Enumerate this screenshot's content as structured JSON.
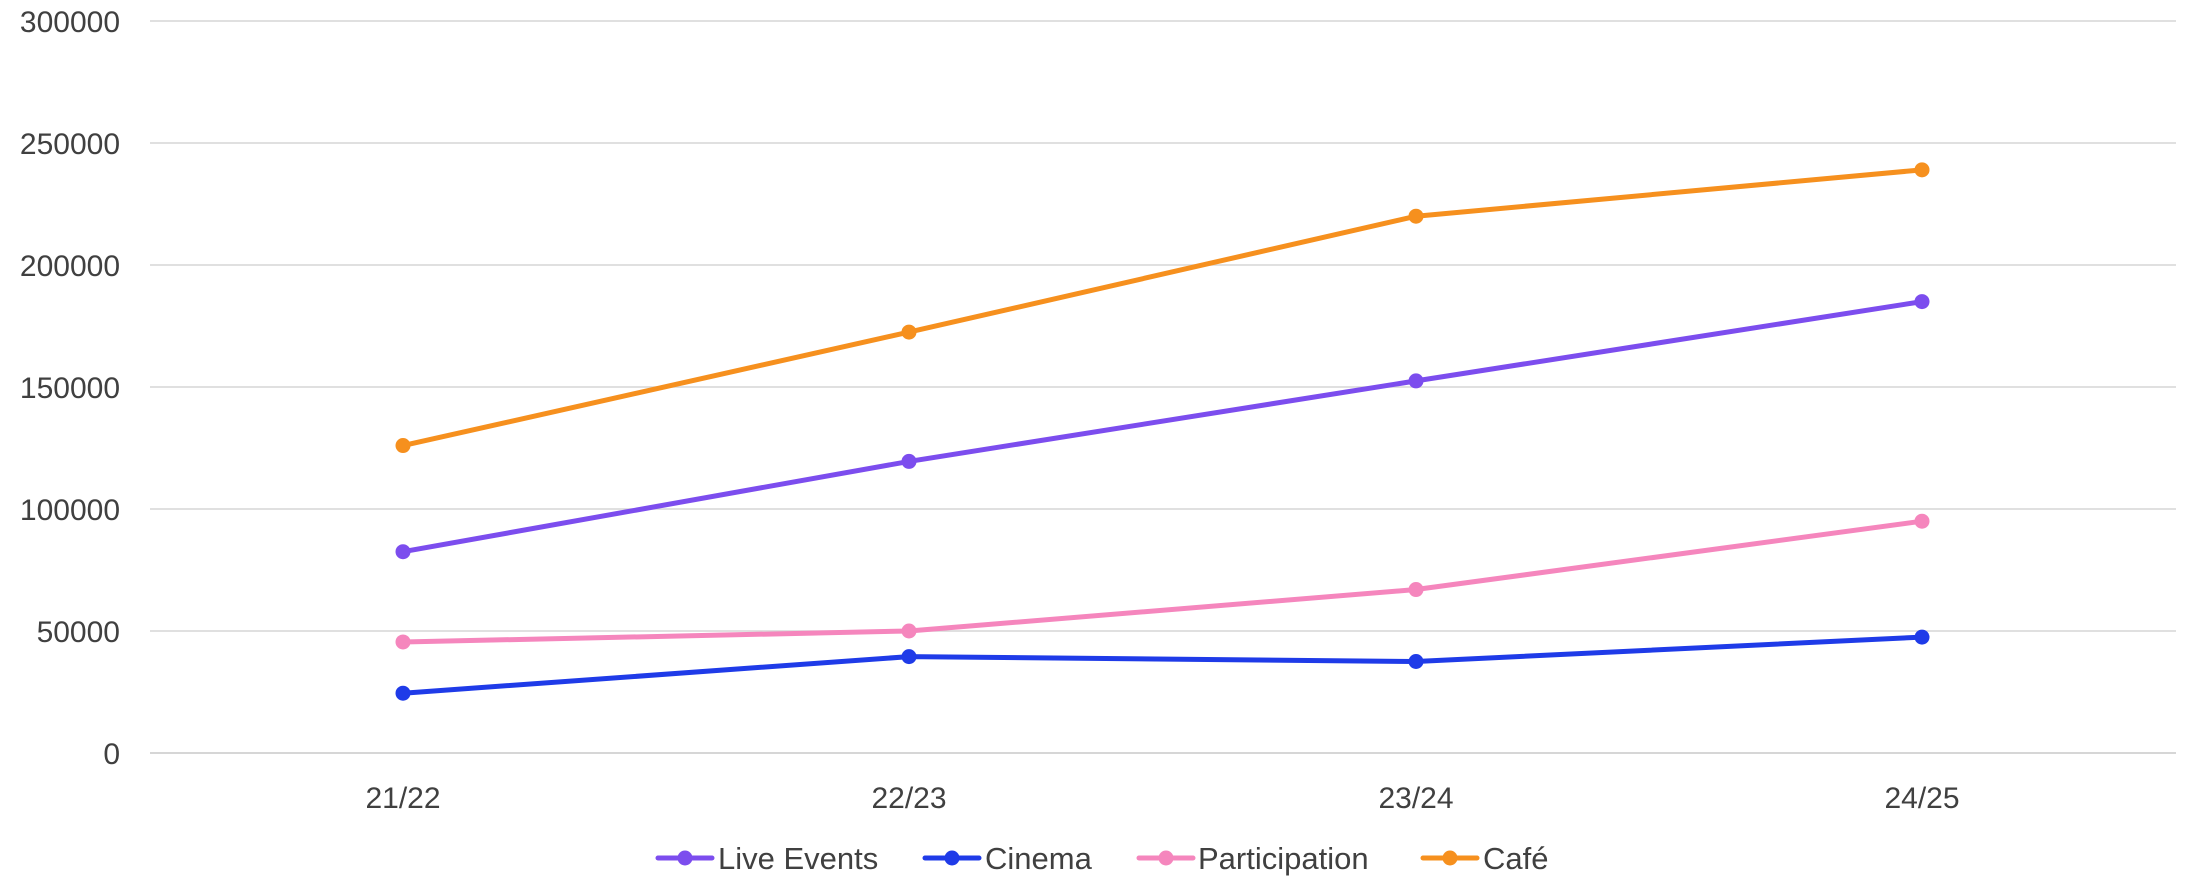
{
  "chart_data": {
    "type": "line",
    "title": "",
    "xlabel": "",
    "ylabel": "",
    "categories": [
      "21/22",
      "22/23",
      "23/24",
      "24/25"
    ],
    "ylim": [
      0,
      300000
    ],
    "yticks": [
      0,
      50000,
      100000,
      150000,
      200000,
      250000,
      300000
    ],
    "ytick_labels": [
      "0",
      "50000",
      "100000",
      "150000",
      "200000",
      "250000",
      "300000"
    ],
    "grid": true,
    "legend_position": "bottom-center",
    "series": [
      {
        "name": "Live Events",
        "color": "#7c4dee",
        "values": [
          82500,
          119500,
          152500,
          185000
        ]
      },
      {
        "name": "Cinema",
        "color": "#1f3be8",
        "values": [
          24500,
          39500,
          37500,
          47500
        ]
      },
      {
        "name": "Participation",
        "color": "#f586bd",
        "values": [
          45500,
          50000,
          67000,
          95000
        ]
      },
      {
        "name": "Café",
        "color": "#f6901e",
        "values": [
          126000,
          172500,
          220000,
          239000
        ]
      }
    ]
  }
}
